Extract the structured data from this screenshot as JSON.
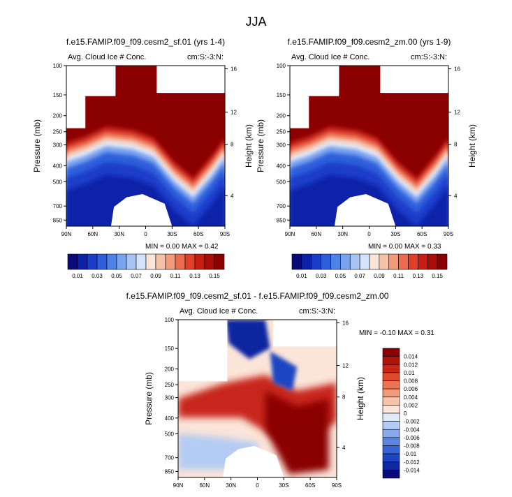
{
  "figure_title": "JJA",
  "chart_data": [
    {
      "type": "heatmap",
      "title": "f.e15.FAMIP.f09_f09.cesm2_sf.01 (yrs 1-4)",
      "subtitle_left": "Avg. Cloud Ice # Conc.",
      "subtitle_right": "cm:S:-3:N:",
      "ylabel": "Pressure (mb)",
      "ylabel_right": "Height (km)",
      "x_ticks": [
        "90N",
        "60N",
        "30N",
        "0",
        "30S",
        "60S",
        "90S"
      ],
      "y_ticks": [
        "100",
        "150",
        "200",
        "250",
        "300",
        "400",
        "500",
        "700",
        "850"
      ],
      "y_ticks_right": [
        "16",
        "12",
        "8",
        "4"
      ],
      "stats": "MIN =  0.00   MAX =  0.42",
      "colorbar": {
        "orientation": "horizontal",
        "labels": [
          "0.01",
          "0.03",
          "0.05",
          "0.07",
          "0.09",
          "0.11",
          "0.13",
          "0.15"
        ],
        "colors": [
          "#0a0a7a",
          "#0d21a8",
          "#1a3ec9",
          "#2d5fdc",
          "#4f82e8",
          "#7aa3ef",
          "#a7c4f5",
          "#d4e3fa",
          "#fbe4d8",
          "#f7c1a8",
          "#f29a7a",
          "#ec6a4e",
          "#e03f2a",
          "#c81e12",
          "#a80d06",
          "#8b0000"
        ]
      }
    },
    {
      "type": "heatmap",
      "title": "f.e15.FAMIP.f09_f09.cesm2_zm.00 (yrs 1-9)",
      "subtitle_left": "Avg. Cloud Ice # Conc.",
      "subtitle_right": "cm:S:-3:N:",
      "ylabel": "Pressure (mb)",
      "ylabel_right": "Height (km)",
      "x_ticks": [
        "90N",
        "60N",
        "30N",
        "0",
        "30S",
        "60S",
        "90S"
      ],
      "y_ticks": [
        "100",
        "150",
        "200",
        "250",
        "300",
        "400",
        "500",
        "700",
        "850"
      ],
      "y_ticks_right": [
        "16",
        "12",
        "8",
        "4"
      ],
      "stats": "MIN =  0.00   MAX =  0.33",
      "colorbar": {
        "orientation": "horizontal",
        "labels": [
          "0.01",
          "0.03",
          "0.05",
          "0.07",
          "0.09",
          "0.11",
          "0.13",
          "0.15"
        ],
        "colors": [
          "#0a0a7a",
          "#0d21a8",
          "#1a3ec9",
          "#2d5fdc",
          "#4f82e8",
          "#7aa3ef",
          "#a7c4f5",
          "#d4e3fa",
          "#fbe4d8",
          "#f7c1a8",
          "#f29a7a",
          "#ec6a4e",
          "#e03f2a",
          "#c81e12",
          "#a80d06",
          "#8b0000"
        ]
      }
    },
    {
      "type": "heatmap",
      "title": "f.e15.FAMIP.f09_f09.cesm2_sf.01 - f.e15.FAMIP.f09_f09.cesm2_zm.00",
      "subtitle_left": "Avg. Cloud Ice # Conc.",
      "subtitle_right": "cm:S:-3:N:",
      "ylabel": "Pressure (mb)",
      "ylabel_right": "Height (km)",
      "x_ticks": [
        "90N",
        "60N",
        "30N",
        "0",
        "30S",
        "60S",
        "90S"
      ],
      "y_ticks": [
        "100",
        "150",
        "200",
        "250",
        "300",
        "400",
        "500",
        "700",
        "850"
      ],
      "y_ticks_right": [
        "16",
        "12",
        "8",
        "4"
      ],
      "stats": "MIN = -0.10   MAX =  0.31",
      "colorbar": {
        "orientation": "vertical",
        "labels": [
          "0.014",
          "0.012",
          "0.01",
          "0.008",
          "0.006",
          "0.004",
          "0.002",
          "0",
          "-0.002",
          "-0.004",
          "-0.006",
          "-0.008",
          "-0.01",
          "-0.012",
          "-0.014"
        ],
        "colors": [
          "#8b0000",
          "#b01208",
          "#cc2414",
          "#e04a2c",
          "#ec7250",
          "#f39a7a",
          "#f8c2a8",
          "#fde4d8",
          "#e0ebfa",
          "#b4ccf3",
          "#86aaec",
          "#5a86e2",
          "#3664d6",
          "#1a44c2",
          "#0d28a0",
          "#0a0a7a"
        ]
      }
    }
  ]
}
